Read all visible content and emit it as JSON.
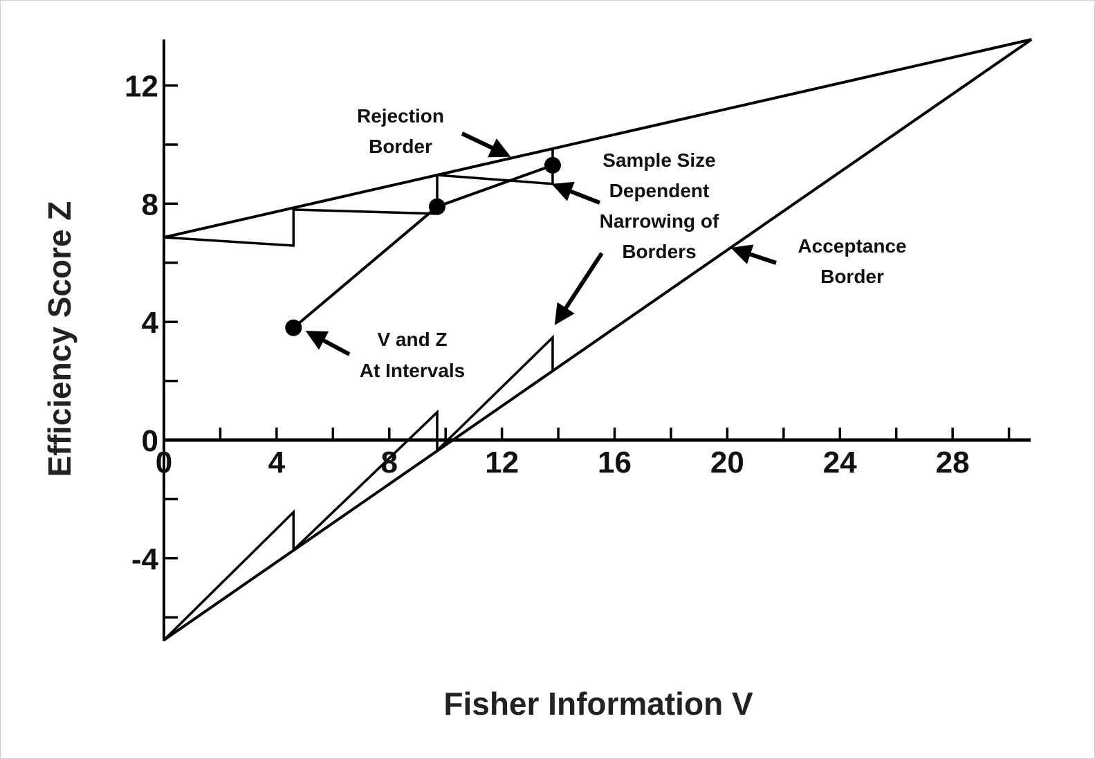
{
  "chart_data": {
    "type": "line",
    "xlabel": "Fisher Information V",
    "ylabel": "Efficiency Score Z",
    "xlim": [
      0,
      30.8
    ],
    "ylim": [
      -6.8,
      13.6
    ],
    "xticks": [
      0,
      4,
      8,
      12,
      16,
      20,
      24,
      28
    ],
    "xminor_step": 2,
    "yticks": [
      -4,
      0,
      4,
      8,
      12
    ],
    "yminor_step": 2,
    "grid": false,
    "series": [
      {
        "name": "Rejection Border",
        "x": [
          0,
          30.8
        ],
        "y": [
          6.86,
          13.56
        ]
      },
      {
        "name": "Acceptance Border",
        "x": [
          0,
          30.8
        ],
        "y": [
          -6.77,
          13.56
        ]
      },
      {
        "name": "V and Z At Intervals",
        "x": [
          4.6,
          9.7,
          13.8
        ],
        "y": [
          3.8,
          7.9,
          9.3
        ],
        "markers": true
      },
      {
        "name": "Sample Size Dependent Narrowing of Borders (rejection)",
        "x": [
          0,
          4.6,
          4.6,
          4.6,
          9.7,
          9.7,
          9.7,
          13.8,
          13.8
        ],
        "y": [
          6.86,
          6.58,
          7.8,
          7.8,
          7.66,
          8.97,
          8.97,
          8.67,
          9.84
        ]
      },
      {
        "name": "Sample Size Dependent Narrowing of Borders (acceptance)",
        "x": [
          0,
          4.6,
          4.6,
          9.7,
          9.7,
          13.8,
          13.8
        ],
        "y": [
          -6.77,
          -2.44,
          -3.72,
          0.94,
          -0.35,
          3.47,
          2.32
        ]
      }
    ],
    "annotations": {
      "rejection": [
        "Rejection",
        "Border"
      ],
      "narrowing": [
        "Sample Size",
        "Dependent",
        "Narrowing of",
        "Borders"
      ],
      "acceptance": [
        "Acceptance",
        "Border"
      ],
      "intervals": [
        "V and Z",
        "At Intervals"
      ]
    },
    "color": "#000000"
  }
}
